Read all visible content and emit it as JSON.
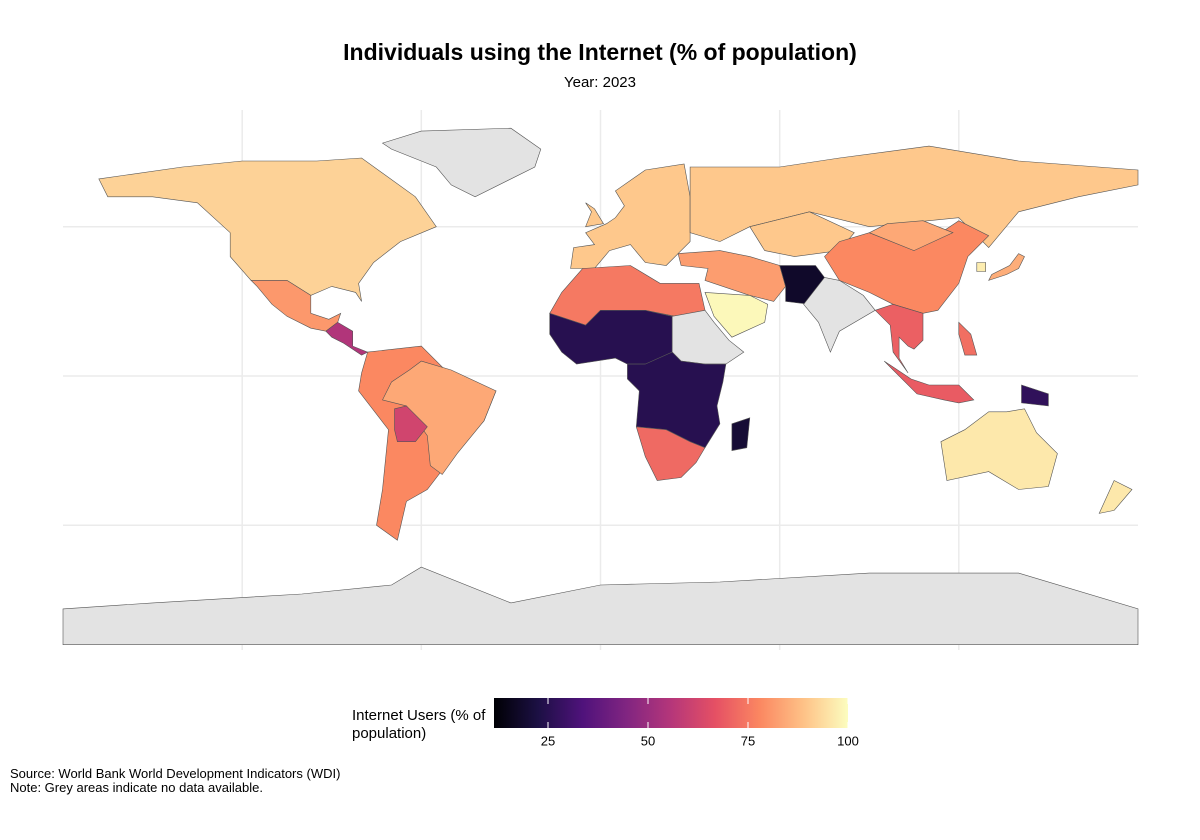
{
  "chart_data": {
    "type": "choropleth",
    "title": "Individuals using the Internet (% of population)",
    "subtitle": "Year: 2023",
    "values": [
      92,
      81,
      55,
      null,
      78,
      84,
      62,
      90,
      90,
      90,
      82,
      99,
      90,
      18,
      null,
      78,
      84,
      85,
      97,
      70,
      69,
      27,
      73,
      96,
      96,
      75,
      25,
      null,
      25,
      72,
      20,
      null
    ],
    "colormap": "magma",
    "missing_color": "#e3e3e3",
    "grid": true,
    "legend": {
      "title": "Internet Users (% of population)",
      "lim": [
        11.5,
        100
      ],
      "ticks": [
        25,
        50,
        75,
        100
      ]
    },
    "source": "Source: World Bank World Development Indicators (WDI)",
    "note": "Note: Grey areas indicate no data available."
  }
}
